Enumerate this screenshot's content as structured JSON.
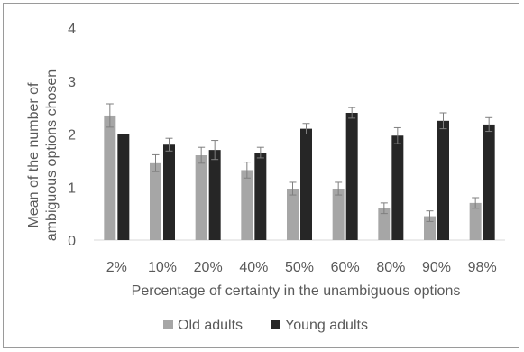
{
  "chart_data": {
    "type": "bar",
    "title": "",
    "xlabel": "Percentage of certainty in the unambiguous options",
    "ylabel": "Mean of the number of ambiguous options chosen",
    "ylim": [
      0,
      4
    ],
    "yticks": [
      "0",
      "1",
      "2",
      "3",
      "4"
    ],
    "grid": false,
    "legend": "bottom",
    "categories": [
      "2%",
      "10%",
      "20%",
      "40%",
      "50%",
      "60%",
      "80%",
      "90%",
      "98%"
    ],
    "series": [
      {
        "name": "Old adults",
        "color": "#a6a6a6",
        "values": [
          2.35,
          1.45,
          1.6,
          1.32,
          0.97,
          0.97,
          0.6,
          0.45,
          0.7
        ],
        "errors": [
          0.22,
          0.16,
          0.15,
          0.15,
          0.12,
          0.12,
          0.1,
          0.1,
          0.1
        ]
      },
      {
        "name": "Young adults",
        "color": "#262626",
        "values": [
          2.0,
          1.8,
          1.7,
          1.65,
          2.1,
          2.4,
          1.97,
          2.25,
          2.18
        ],
        "errors": [
          0.0,
          0.12,
          0.18,
          0.1,
          0.1,
          0.1,
          0.15,
          0.15,
          0.13
        ]
      }
    ]
  }
}
